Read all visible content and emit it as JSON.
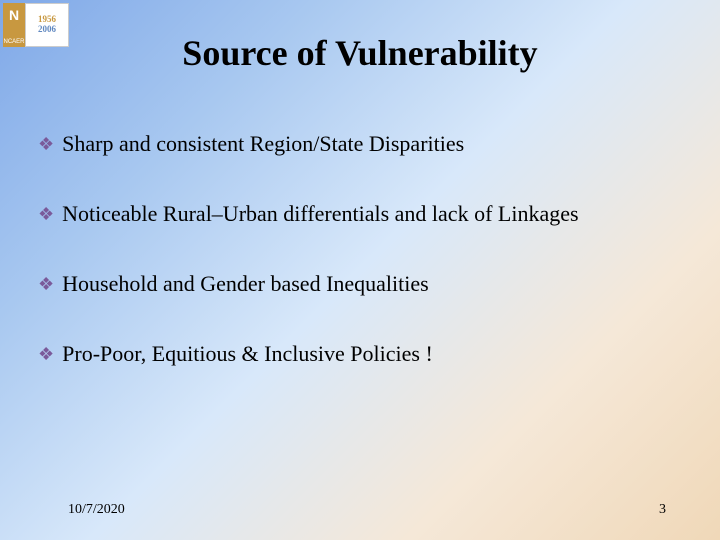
{
  "logo": {
    "left_text": "NCAER",
    "year1": "1956",
    "year2": "2006"
  },
  "title": "Source of Vulnerability",
  "bullets": [
    {
      "text": "Sharp and consistent Region/State Disparities"
    },
    {
      "text": "Noticeable Rural–Urban differentials and lack of Linkages"
    },
    {
      "text": "Household and Gender based Inequalities"
    },
    {
      "text": "Pro-Poor, Equitious & Inclusive Policies !"
    }
  ],
  "bullet_style": {
    "icon_char": "❖",
    "icon_color": "#7a5a9a"
  },
  "footer": {
    "date": "10/7/2020",
    "page": "3"
  },
  "colors": {
    "bg_gradient_start": "#7fa8e8",
    "bg_gradient_end": "#f0d8b8",
    "text": "#000000"
  },
  "typography": {
    "title_fontsize": 36,
    "body_fontsize": 22,
    "footer_fontsize": 14,
    "font_family": "Times New Roman"
  }
}
